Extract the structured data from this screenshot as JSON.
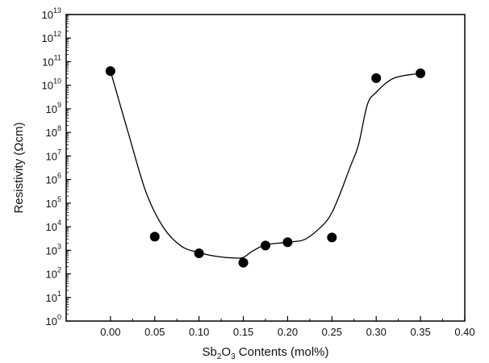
{
  "chart_data": {
    "type": "scatter",
    "title": "",
    "xlabel": {
      "prefix": "Sb",
      "sub1": "2",
      "mid": "O",
      "sub2": "3",
      "suffix": " Contents (mol%)"
    },
    "ylabel": "Resistivity (Ωcm)",
    "xlim": [
      -0.05,
      0.4
    ],
    "ylim_log10": [
      0,
      13
    ],
    "y_scale": "log",
    "x_ticks": [
      "0.00",
      "0.05",
      "0.10",
      "0.15",
      "0.20",
      "0.25",
      "0.30",
      "0.35",
      "0.40"
    ],
    "y_tick_base": "10",
    "y_tick_exponents": [
      "0",
      "1",
      "2",
      "3",
      "4",
      "5",
      "6",
      "7",
      "8",
      "9",
      "10",
      "11",
      "12",
      "13"
    ],
    "series": [
      {
        "style": "markers",
        "x": [
          0.0,
          0.05,
          0.1,
          0.15,
          0.175,
          0.2,
          0.25,
          0.3,
          0.35
        ],
        "y": [
          40000000000.0,
          3800.0,
          750.0,
          300.0,
          1600.0,
          2200.0,
          3500.0,
          20000000000.0,
          32000000000.0
        ]
      },
      {
        "style": "smooth-line",
        "x": [
          0.0,
          0.02,
          0.04,
          0.06,
          0.08,
          0.1,
          0.12,
          0.14,
          0.15,
          0.16,
          0.175,
          0.2,
          0.22,
          0.24,
          0.25,
          0.26,
          0.27,
          0.28,
          0.29,
          0.3,
          0.32,
          0.35
        ],
        "y": [
          40000000000.0,
          100000000.0,
          300000.0,
          9000.0,
          1500.0,
          800.0,
          550.0,
          470.0,
          500.0,
          900.0,
          1700.0,
          2200.0,
          3000.0,
          12000.0,
          40000.0,
          300000.0,
          3000000.0,
          30000000.0,
          1500000000.0,
          5000000000.0,
          20000000000.0,
          32000000000.0
        ]
      }
    ],
    "marker_color": "#000000",
    "line_color": "#000000",
    "grid": false,
    "legend": "none"
  }
}
